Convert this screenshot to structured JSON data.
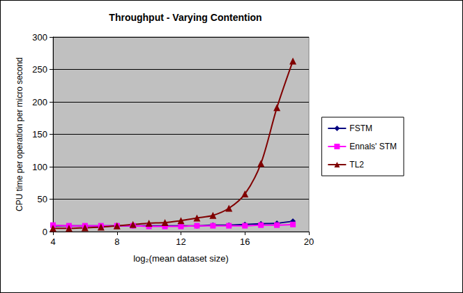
{
  "chart_data": {
    "type": "line",
    "title": "Throughput - Varying Contention",
    "x_label": "log₂(mean dataset size)",
    "y_label": "CPU time per operation per micro second",
    "x": [
      4,
      5,
      6,
      7,
      8,
      9,
      10,
      11,
      12,
      13,
      14,
      15,
      16,
      17,
      18,
      19
    ],
    "series": [
      {
        "name": "FSTM",
        "color": "#000080",
        "marker": "diamond",
        "values": [
          9,
          9,
          9,
          9,
          9,
          9,
          9,
          9,
          9,
          9,
          10,
          10,
          11,
          12,
          13,
          16
        ]
      },
      {
        "name": "Ennals' STM",
        "color": "#ff00ff",
        "marker": "square",
        "values": [
          10,
          9,
          9,
          9,
          9,
          9,
          8,
          8,
          8,
          9,
          9,
          9,
          9,
          10,
          10,
          11
        ]
      },
      {
        "name": "TL2",
        "color": "#800000",
        "marker": "triangle",
        "values": [
          5,
          5,
          6,
          7,
          9,
          11,
          13,
          14,
          17,
          21,
          25,
          36,
          58,
          105,
          191,
          263
        ]
      }
    ],
    "xlim": [
      4,
      20
    ],
    "xticks": [
      4,
      8,
      12,
      16,
      20
    ],
    "ylim": [
      0,
      300
    ],
    "yticks": [
      0,
      50,
      100,
      150,
      200,
      250,
      300
    ],
    "grid": true,
    "legend": "right"
  }
}
